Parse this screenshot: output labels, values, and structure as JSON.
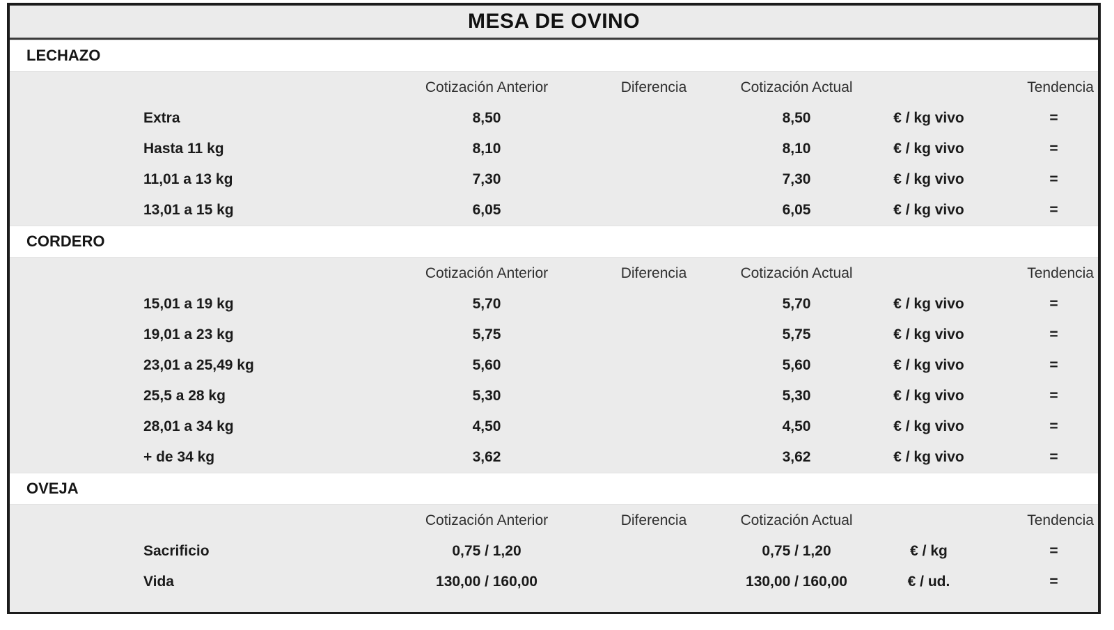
{
  "title": "MESA DE OVINO",
  "columns": {
    "anterior": "Cotización Anterior",
    "diferencia": "Diferencia",
    "actual": "Cotización Actual",
    "tendencia": "Tendencia"
  },
  "colors": {
    "table_background": "#ebebeb",
    "section_row_background": "#ffffff",
    "outer_border": "#1c1c1c",
    "text": "#1a1a1a"
  },
  "sections": [
    {
      "name": "LECHAZO",
      "rows": [
        {
          "label": "Extra",
          "anterior": "8,50",
          "diferencia": "",
          "actual": "8,50",
          "unit": "€ / kg vivo",
          "tendencia": "="
        },
        {
          "label": "Hasta 11 kg",
          "anterior": "8,10",
          "diferencia": "",
          "actual": "8,10",
          "unit": "€ / kg vivo",
          "tendencia": "="
        },
        {
          "label": "11,01 a 13 kg",
          "anterior": "7,30",
          "diferencia": "",
          "actual": "7,30",
          "unit": "€ / kg vivo",
          "tendencia": "="
        },
        {
          "label": "13,01 a 15 kg",
          "anterior": "6,05",
          "diferencia": "",
          "actual": "6,05",
          "unit": "€ / kg vivo",
          "tendencia": "="
        }
      ]
    },
    {
      "name": "CORDERO",
      "rows": [
        {
          "label": "15,01 a 19 kg",
          "anterior": "5,70",
          "diferencia": "",
          "actual": "5,70",
          "unit": "€ / kg vivo",
          "tendencia": "="
        },
        {
          "label": "19,01 a 23 kg",
          "anterior": "5,75",
          "diferencia": "",
          "actual": "5,75",
          "unit": "€ / kg vivo",
          "tendencia": "="
        },
        {
          "label": "23,01 a 25,49 kg",
          "anterior": "5,60",
          "diferencia": "",
          "actual": "5,60",
          "unit": "€ / kg vivo",
          "tendencia": "="
        },
        {
          "label": "25,5 a 28 kg",
          "anterior": "5,30",
          "diferencia": "",
          "actual": "5,30",
          "unit": "€ / kg vivo",
          "tendencia": "="
        },
        {
          "label": "28,01 a 34 kg",
          "anterior": "4,50",
          "diferencia": "",
          "actual": "4,50",
          "unit": "€ / kg vivo",
          "tendencia": "="
        },
        {
          "label": "+ de 34 kg",
          "anterior": "3,62",
          "diferencia": "",
          "actual": "3,62",
          "unit": "€ / kg vivo",
          "tendencia": "="
        }
      ]
    },
    {
      "name": "OVEJA",
      "rows": [
        {
          "label": "Sacrificio",
          "anterior": "0,75 / 1,20",
          "diferencia": "",
          "actual": "0,75 / 1,20",
          "unit": "€ / kg",
          "tendencia": "="
        },
        {
          "label": "Vida",
          "anterior": "130,00 / 160,00",
          "diferencia": "",
          "actual": "130,00 / 160,00",
          "unit": "€ / ud.",
          "tendencia": "="
        }
      ]
    }
  ]
}
